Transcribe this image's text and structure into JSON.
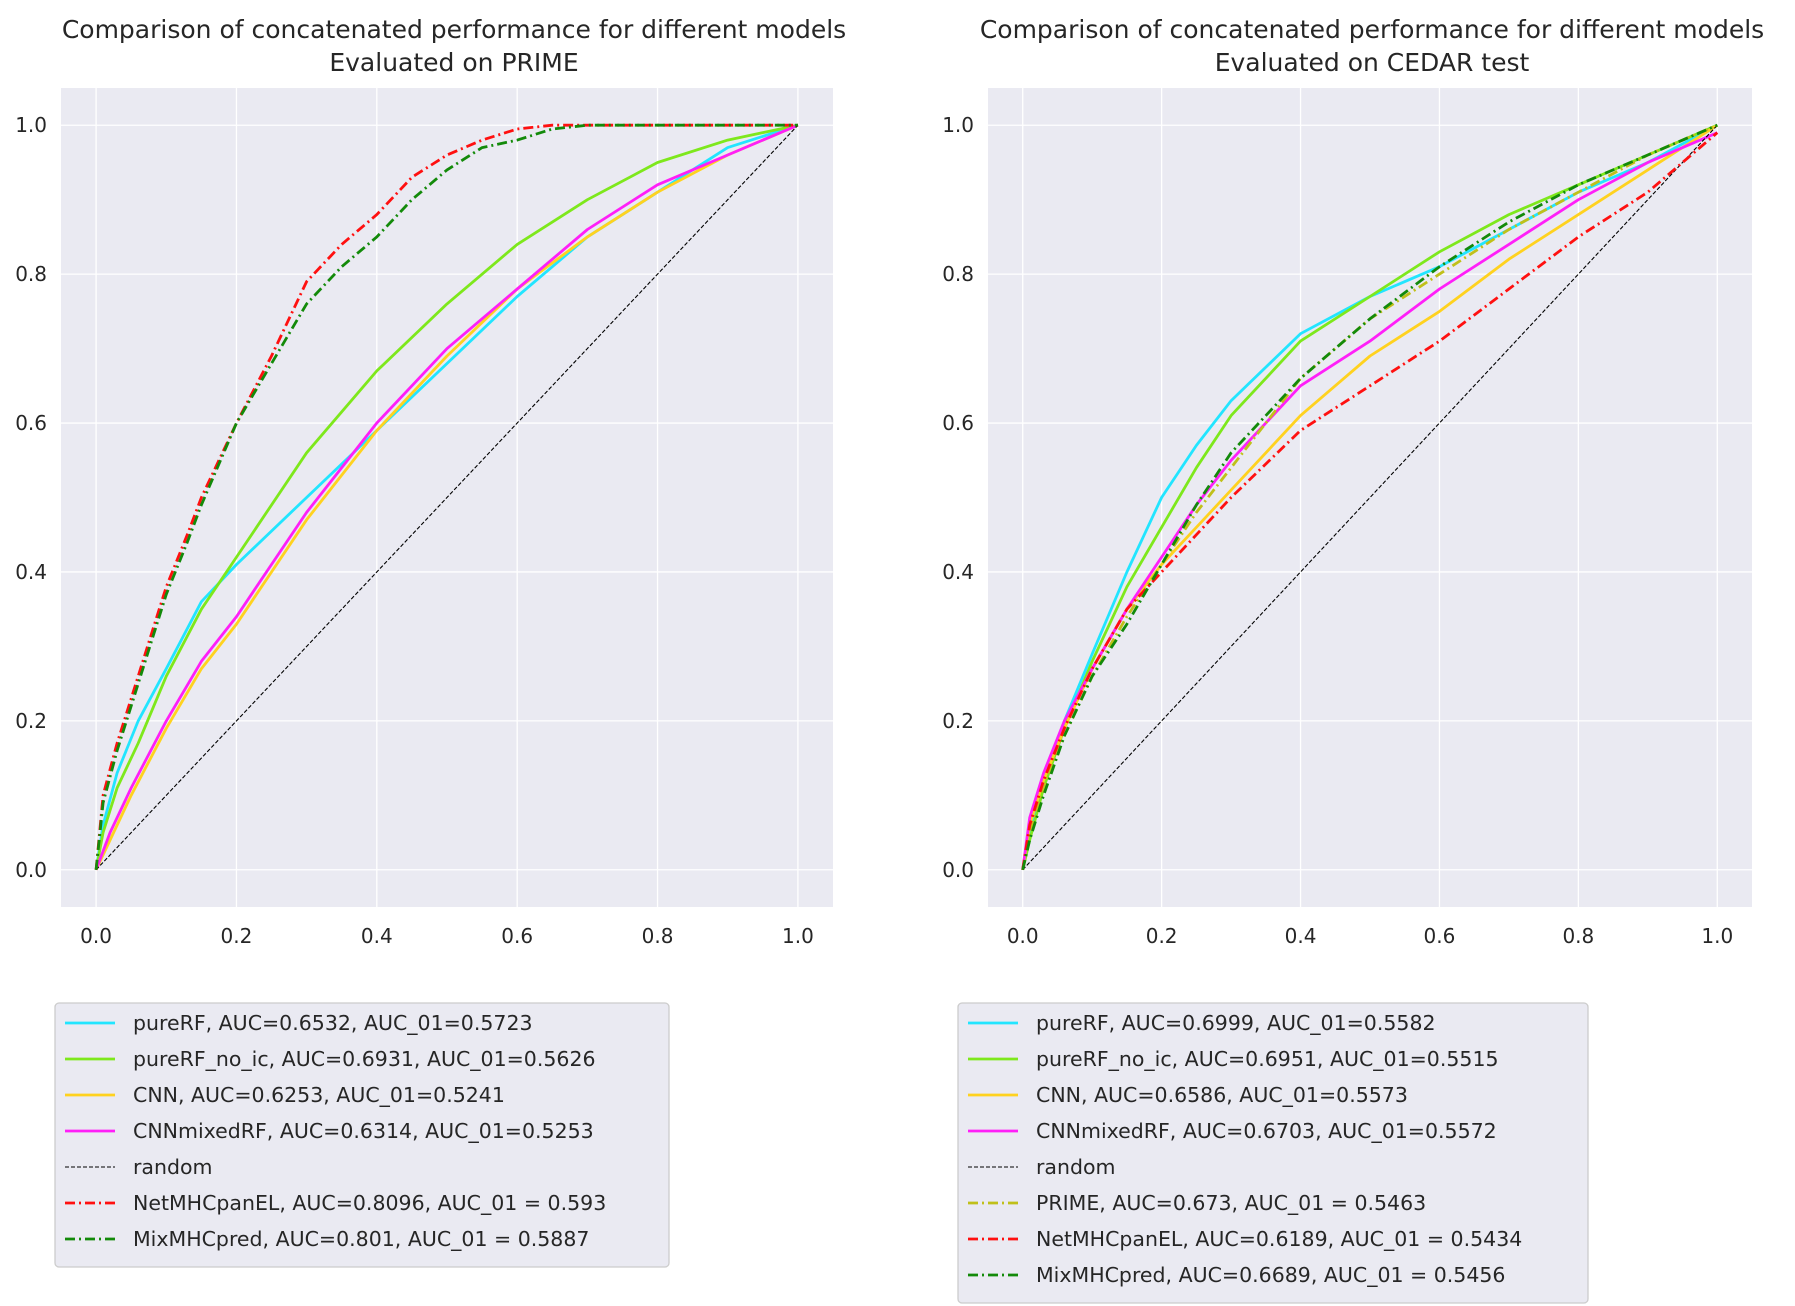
{
  "chart_data": [
    {
      "type": "line",
      "title": "Comparison of concatenated performance for different models",
      "subtitle": "Evaluated on PRIME",
      "xlabel": "",
      "ylabel": "",
      "xlim": [
        -0.05,
        1.05
      ],
      "ylim": [
        -0.05,
        1.05
      ],
      "xticks": [
        "0.0",
        "0.2",
        "0.4",
        "0.6",
        "0.8",
        "1.0"
      ],
      "yticks": [
        "0.0",
        "0.2",
        "0.4",
        "0.6",
        "0.8",
        "1.0"
      ],
      "grid": true,
      "legend_position": "below",
      "series": [
        {
          "name": "pureRF, AUC=0.6532, AUC_01=0.5723",
          "color": "#22e5ff",
          "style": "solid",
          "x": [
            0,
            0.01,
            0.03,
            0.06,
            0.1,
            0.15,
            0.2,
            0.3,
            0.4,
            0.5,
            0.6,
            0.7,
            0.8,
            0.9,
            1.0
          ],
          "y": [
            0,
            0.06,
            0.13,
            0.2,
            0.27,
            0.36,
            0.41,
            0.5,
            0.59,
            0.68,
            0.77,
            0.85,
            0.91,
            0.97,
            1.0
          ]
        },
        {
          "name": "pureRF_no_ic, AUC=0.6931, AUC_01=0.5626",
          "color": "#7ee81c",
          "style": "solid",
          "x": [
            0,
            0.01,
            0.03,
            0.06,
            0.1,
            0.15,
            0.2,
            0.3,
            0.4,
            0.5,
            0.6,
            0.7,
            0.8,
            0.9,
            1.0
          ],
          "y": [
            0,
            0.05,
            0.11,
            0.17,
            0.26,
            0.35,
            0.42,
            0.56,
            0.67,
            0.76,
            0.84,
            0.9,
            0.95,
            0.98,
            1.0
          ]
        },
        {
          "name": "CNN, AUC=0.6253, AUC_01=0.5241",
          "color": "#ffd21f",
          "style": "solid",
          "x": [
            0,
            0.02,
            0.05,
            0.1,
            0.15,
            0.2,
            0.25,
            0.3,
            0.4,
            0.5,
            0.6,
            0.7,
            0.8,
            0.9,
            1.0
          ],
          "y": [
            0,
            0.04,
            0.1,
            0.19,
            0.27,
            0.33,
            0.4,
            0.47,
            0.59,
            0.69,
            0.78,
            0.85,
            0.91,
            0.96,
            1.0
          ]
        },
        {
          "name": "CNNmixedRF, AUC=0.6314, AUC_01=0.5253",
          "color": "#ff1ff8",
          "style": "solid",
          "x": [
            0,
            0.02,
            0.05,
            0.1,
            0.15,
            0.2,
            0.25,
            0.3,
            0.4,
            0.5,
            0.6,
            0.7,
            0.8,
            0.9,
            1.0
          ],
          "y": [
            0,
            0.05,
            0.11,
            0.2,
            0.28,
            0.34,
            0.41,
            0.48,
            0.6,
            0.7,
            0.78,
            0.86,
            0.92,
            0.96,
            1.0
          ]
        },
        {
          "name": "random",
          "color": "#000000",
          "style": "dashed-thin",
          "x": [
            0,
            1
          ],
          "y": [
            0,
            1
          ]
        },
        {
          "name": "NetMHCpanEL, AUC=0.8096, AUC_01 = 0.593",
          "color": "#ff1010",
          "style": "dashdot",
          "x": [
            0,
            0.01,
            0.03,
            0.05,
            0.08,
            0.1,
            0.13,
            0.15,
            0.2,
            0.25,
            0.3,
            0.35,
            0.4,
            0.45,
            0.5,
            0.55,
            0.6,
            0.65,
            0.7,
            0.8,
            1.0
          ],
          "y": [
            0,
            0.1,
            0.17,
            0.23,
            0.32,
            0.38,
            0.45,
            0.5,
            0.6,
            0.69,
            0.79,
            0.84,
            0.88,
            0.93,
            0.96,
            0.98,
            0.995,
            1.0,
            1.0,
            1.0,
            1.0
          ]
        },
        {
          "name": "MixMHCpred, AUC=0.801, AUC_01 = 0.5887",
          "color": "#138a0a",
          "style": "dashdot",
          "x": [
            0,
            0.01,
            0.03,
            0.05,
            0.08,
            0.1,
            0.13,
            0.15,
            0.2,
            0.25,
            0.3,
            0.35,
            0.4,
            0.45,
            0.5,
            0.55,
            0.6,
            0.65,
            0.7,
            0.8,
            1.0
          ],
          "y": [
            0,
            0.09,
            0.16,
            0.22,
            0.31,
            0.37,
            0.44,
            0.49,
            0.6,
            0.68,
            0.76,
            0.81,
            0.85,
            0.9,
            0.94,
            0.97,
            0.98,
            0.995,
            1.0,
            1.0,
            1.0
          ]
        }
      ]
    },
    {
      "type": "line",
      "title": "Comparison of concatenated performance for different models",
      "subtitle": "Evaluated on CEDAR test",
      "xlabel": "",
      "ylabel": "",
      "xlim": [
        -0.05,
        1.05
      ],
      "ylim": [
        -0.05,
        1.05
      ],
      "xticks": [
        "0.0",
        "0.2",
        "0.4",
        "0.6",
        "0.8",
        "1.0"
      ],
      "yticks": [
        "0.0",
        "0.2",
        "0.4",
        "0.6",
        "0.8",
        "1.0"
      ],
      "grid": true,
      "legend_position": "below",
      "series": [
        {
          "name": "pureRF, AUC=0.6999, AUC_01=0.5582",
          "color": "#22e5ff",
          "style": "solid",
          "x": [
            0,
            0.01,
            0.03,
            0.06,
            0.1,
            0.15,
            0.2,
            0.25,
            0.3,
            0.4,
            0.5,
            0.6,
            0.7,
            0.8,
            0.9,
            1.0
          ],
          "y": [
            0,
            0.05,
            0.12,
            0.2,
            0.29,
            0.4,
            0.5,
            0.57,
            0.63,
            0.72,
            0.77,
            0.81,
            0.86,
            0.91,
            0.95,
            1.0
          ]
        },
        {
          "name": "pureRF_no_ic, AUC=0.6951, AUC_01=0.5515",
          "color": "#7ee81c",
          "style": "solid",
          "x": [
            0,
            0.01,
            0.03,
            0.06,
            0.1,
            0.15,
            0.2,
            0.25,
            0.3,
            0.4,
            0.5,
            0.6,
            0.7,
            0.8,
            0.9,
            1.0
          ],
          "y": [
            0,
            0.04,
            0.11,
            0.19,
            0.28,
            0.38,
            0.46,
            0.54,
            0.61,
            0.71,
            0.77,
            0.83,
            0.88,
            0.92,
            0.96,
            1.0
          ]
        },
        {
          "name": "CNN, AUC=0.6586, AUC_01=0.5573",
          "color": "#ffd21f",
          "style": "solid",
          "x": [
            0,
            0.01,
            0.03,
            0.06,
            0.1,
            0.15,
            0.2,
            0.25,
            0.3,
            0.4,
            0.5,
            0.6,
            0.7,
            0.8,
            0.9,
            1.0
          ],
          "y": [
            0,
            0.06,
            0.12,
            0.19,
            0.27,
            0.35,
            0.41,
            0.46,
            0.51,
            0.61,
            0.69,
            0.75,
            0.82,
            0.88,
            0.94,
            1.0
          ]
        },
        {
          "name": "CNNmixedRF, AUC=0.6703, AUC_01=0.5572",
          "color": "#ff1ff8",
          "style": "solid",
          "x": [
            0,
            0.01,
            0.03,
            0.06,
            0.1,
            0.15,
            0.2,
            0.25,
            0.3,
            0.4,
            0.5,
            0.6,
            0.7,
            0.8,
            0.9,
            1.0
          ],
          "y": [
            0,
            0.07,
            0.13,
            0.2,
            0.27,
            0.35,
            0.42,
            0.49,
            0.55,
            0.65,
            0.71,
            0.78,
            0.84,
            0.9,
            0.95,
            0.99
          ]
        },
        {
          "name": "random",
          "color": "#000000",
          "style": "dashed-thin",
          "x": [
            0,
            1
          ],
          "y": [
            0,
            1
          ]
        },
        {
          "name": "PRIME, AUC=0.673, AUC_01 = 0.5463",
          "color": "#c0c01a",
          "style": "dashdot",
          "x": [
            0,
            0.01,
            0.03,
            0.06,
            0.1,
            0.15,
            0.2,
            0.25,
            0.3,
            0.4,
            0.5,
            0.6,
            0.7,
            0.8,
            0.9,
            1.0
          ],
          "y": [
            0,
            0.05,
            0.11,
            0.18,
            0.26,
            0.34,
            0.41,
            0.48,
            0.54,
            0.66,
            0.74,
            0.8,
            0.86,
            0.91,
            0.96,
            1.0
          ]
        },
        {
          "name": "NetMHCpanEL, AUC=0.6189, AUC_01 = 0.5434",
          "color": "#ff1010",
          "style": "dashdot",
          "x": [
            0,
            0.01,
            0.03,
            0.06,
            0.1,
            0.15,
            0.2,
            0.25,
            0.3,
            0.4,
            0.5,
            0.6,
            0.7,
            0.8,
            0.9,
            1.0
          ],
          "y": [
            0,
            0.06,
            0.12,
            0.19,
            0.27,
            0.35,
            0.4,
            0.45,
            0.5,
            0.59,
            0.65,
            0.71,
            0.78,
            0.85,
            0.91,
            0.99
          ]
        },
        {
          "name": "MixMHCpred, AUC=0.6689, AUC_01 = 0.5456",
          "color": "#138a0a",
          "style": "dashdot",
          "x": [
            0,
            0.01,
            0.03,
            0.06,
            0.1,
            0.15,
            0.2,
            0.25,
            0.3,
            0.4,
            0.5,
            0.6,
            0.7,
            0.8,
            0.9,
            1.0
          ],
          "y": [
            0,
            0.04,
            0.1,
            0.18,
            0.26,
            0.33,
            0.41,
            0.49,
            0.56,
            0.66,
            0.74,
            0.81,
            0.87,
            0.92,
            0.96,
            1.0
          ]
        }
      ]
    }
  ]
}
